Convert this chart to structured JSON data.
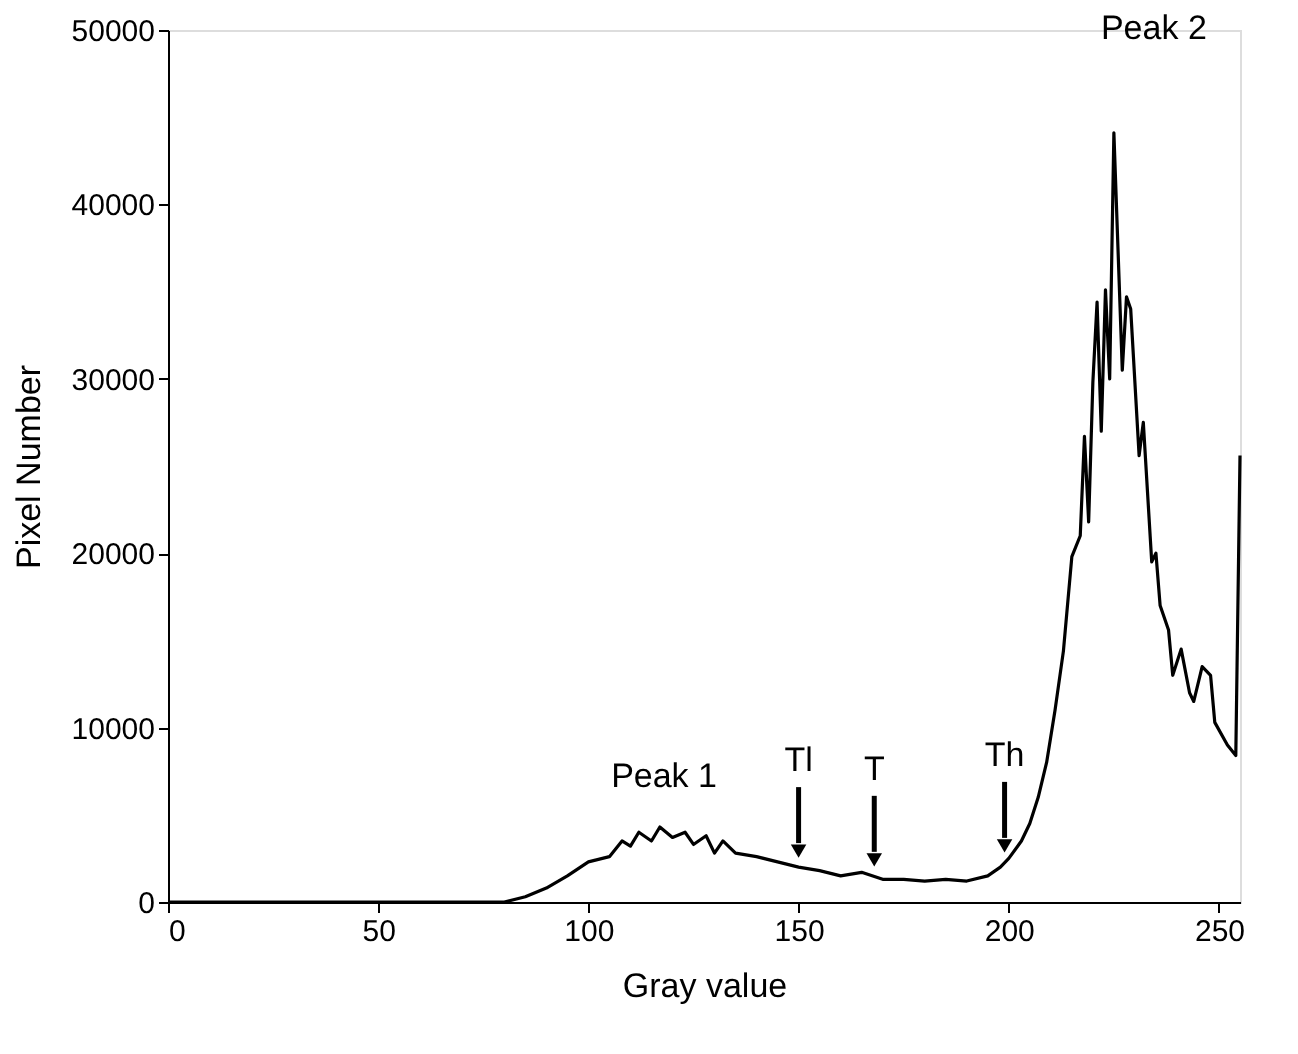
{
  "chart_data": {
    "type": "line",
    "xlabel": "Gray value",
    "ylabel": "Pixel Number",
    "x": [
      0,
      80,
      85,
      90,
      95,
      100,
      105,
      108,
      110,
      112,
      115,
      117,
      120,
      123,
      125,
      128,
      130,
      132,
      135,
      140,
      145,
      150,
      155,
      160,
      165,
      170,
      175,
      180,
      185,
      190,
      195,
      198,
      200,
      203,
      205,
      207,
      209,
      211,
      213,
      215,
      217,
      218,
      219,
      220,
      221,
      222,
      223,
      224,
      225,
      227,
      228,
      229,
      231,
      232,
      234,
      235,
      236,
      238,
      239,
      241,
      243,
      244,
      246,
      248,
      249,
      252,
      254,
      255
    ],
    "series": [
      {
        "color": "#000000",
        "values": [
          0,
          0,
          300,
          800,
          1500,
          2300,
          2600,
          3500,
          3200,
          4000,
          3500,
          4300,
          3700,
          4000,
          3300,
          3800,
          2800,
          3500,
          2800,
          2600,
          2300,
          2000,
          1800,
          1500,
          1700,
          1300,
          1300,
          1200,
          1300,
          1200,
          1500,
          2000,
          2500,
          3500,
          4500,
          6000,
          8000,
          11000,
          14400,
          19800,
          21000,
          26700,
          21800,
          29800,
          34400,
          27000,
          35100,
          30000,
          44100,
          30500,
          34700,
          34000,
          25600,
          27500,
          19500,
          20000,
          17000,
          15600,
          13000,
          14500,
          12000,
          11500,
          13500,
          13000,
          10300,
          9000,
          8400,
          25600
        ]
      }
    ],
    "xlim": [
      0,
      255
    ],
    "xticks": [
      0,
      50,
      100,
      150,
      200,
      250
    ],
    "ylim": [
      0,
      50000
    ],
    "yticks": [
      0,
      10000,
      20000,
      30000,
      40000,
      50000
    ],
    "grid": false,
    "line_style": "solid",
    "marker": "none",
    "annotations": [
      {
        "text": "Peak 1",
        "x": 118,
        "y": 4300
      },
      {
        "text": "Peak 2",
        "x": 225,
        "y": 44100
      },
      {
        "text": "Tl",
        "x": 150,
        "y": 2000
      },
      {
        "text": "T",
        "x": 168,
        "y": 1500
      },
      {
        "text": "Th",
        "x": 199,
        "y": 2300
      }
    ]
  }
}
